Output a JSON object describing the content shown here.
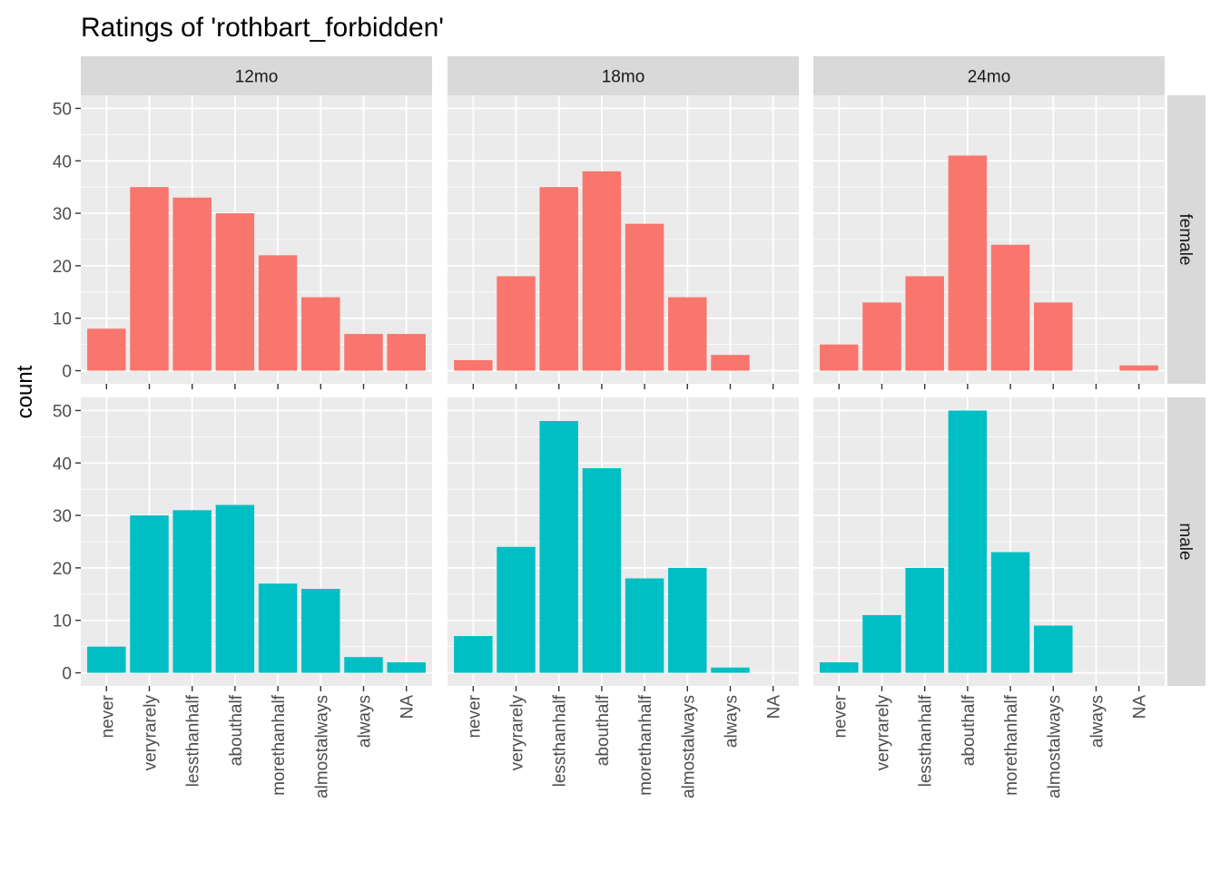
{
  "chart_data": {
    "type": "bar",
    "title": "Ratings of 'rothbart_forbidden'",
    "xlabel": "",
    "ylabel": "count",
    "ylim": [
      0,
      50
    ],
    "yticks": [
      0,
      10,
      20,
      30,
      40,
      50
    ],
    "grid": true,
    "legend": "none",
    "categories": [
      "never",
      "veryrarely",
      "lessthanhalf",
      "abouthalf",
      "morethanhalf",
      "almostalways",
      "always",
      "NA"
    ],
    "columns": [
      "12mo",
      "18mo",
      "24mo"
    ],
    "rows": [
      {
        "label": "female",
        "color": "#F8766D"
      },
      {
        "label": "male",
        "color": "#00BFC4"
      }
    ],
    "panels": [
      {
        "row": "female",
        "column": "12mo",
        "values": [
          8,
          35,
          33,
          30,
          22,
          14,
          7,
          7
        ]
      },
      {
        "row": "female",
        "column": "18mo",
        "values": [
          2,
          18,
          35,
          38,
          28,
          14,
          3,
          0
        ]
      },
      {
        "row": "female",
        "column": "24mo",
        "values": [
          5,
          13,
          18,
          41,
          24,
          13,
          0,
          1
        ]
      },
      {
        "row": "male",
        "column": "12mo",
        "values": [
          5,
          30,
          31,
          32,
          17,
          16,
          3,
          2
        ]
      },
      {
        "row": "male",
        "column": "18mo",
        "values": [
          7,
          24,
          48,
          39,
          18,
          20,
          1,
          0
        ]
      },
      {
        "row": "male",
        "column": "24mo",
        "values": [
          2,
          11,
          20,
          50,
          23,
          9,
          0,
          0
        ]
      }
    ]
  }
}
